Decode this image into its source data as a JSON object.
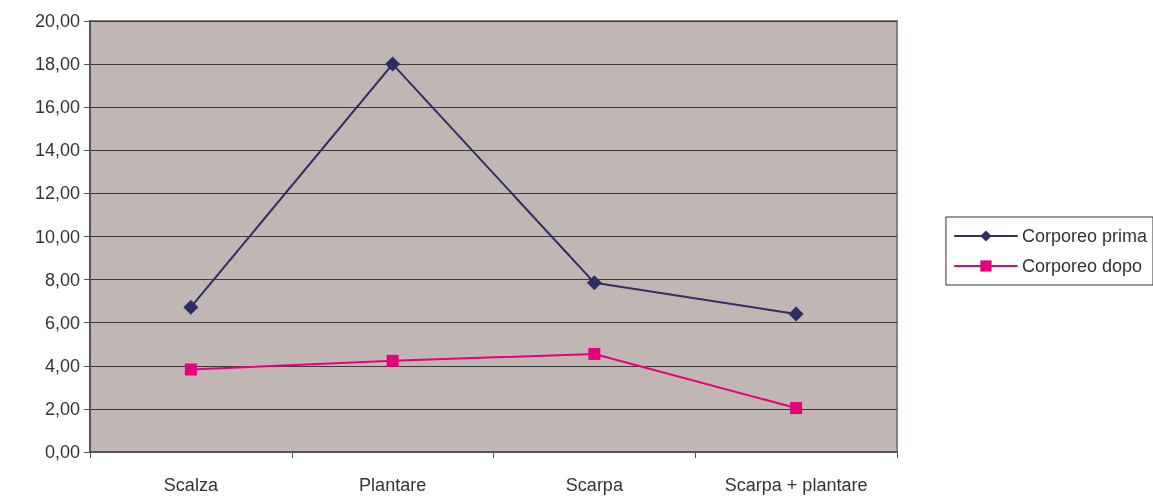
{
  "chart_data": {
    "type": "line",
    "categories": [
      "Scalza",
      "Plantare",
      "Scarpa",
      "Scarpa + plantare"
    ],
    "series": [
      {
        "name": "Corporeo prima",
        "color": "#2e2e62",
        "marker": "diamond",
        "values": [
          6.72,
          18.0,
          7.85,
          6.4
        ]
      },
      {
        "name": "Corporeo dopo",
        "color": "#e6007e",
        "marker": "square",
        "values": [
          3.83,
          4.23,
          4.55,
          2.04
        ]
      }
    ],
    "ylim": [
      0,
      20
    ],
    "yticks": [
      {
        "value": 0,
        "label": "0,00"
      },
      {
        "value": 2,
        "label": "2,00"
      },
      {
        "value": 4,
        "label": "4,00"
      },
      {
        "value": 6,
        "label": "6,00"
      },
      {
        "value": 8,
        "label": "8,00"
      },
      {
        "value": 10,
        "label": "10,00"
      },
      {
        "value": 12,
        "label": "12,00"
      },
      {
        "value": 14,
        "label": "14,00"
      },
      {
        "value": 16,
        "label": "16,00"
      },
      {
        "value": 18,
        "label": "18,00"
      },
      {
        "value": 20,
        "label": "20,00"
      }
    ],
    "grid": "y",
    "legend": "right",
    "line_style": "solid"
  }
}
